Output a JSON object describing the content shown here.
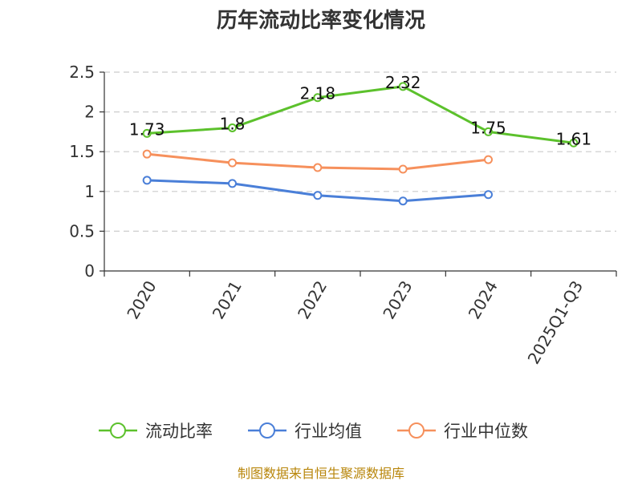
{
  "chart_data": {
    "type": "line",
    "title": "历年流动比率变化情况",
    "categories": [
      "2020",
      "2021",
      "2022",
      "2023",
      "2024",
      "2025Q1-Q3"
    ],
    "ylim": [
      0,
      2.5
    ],
    "yticks": [
      "0",
      "0.5",
      "1",
      "1.5",
      "2",
      "2.5"
    ],
    "grid": true,
    "legend_position": "bottom",
    "series": [
      {
        "name": "流动比率",
        "color": "#5cc12c",
        "values": [
          1.73,
          1.8,
          2.18,
          2.32,
          1.75,
          1.61
        ],
        "labels": [
          "1.73",
          "1.8",
          "2.18",
          "2.32",
          "1.75",
          "1.61"
        ],
        "show_labels": true
      },
      {
        "name": "行业均值",
        "color": "#4a7fd8",
        "values": [
          1.14,
          1.1,
          0.95,
          0.88,
          0.96,
          null
        ],
        "show_labels": false
      },
      {
        "name": "行业中位数",
        "color": "#f6905c",
        "values": [
          1.47,
          1.36,
          1.3,
          1.28,
          1.4,
          null
        ],
        "show_labels": false
      }
    ]
  },
  "source": "制图数据来自恒生聚源数据库"
}
